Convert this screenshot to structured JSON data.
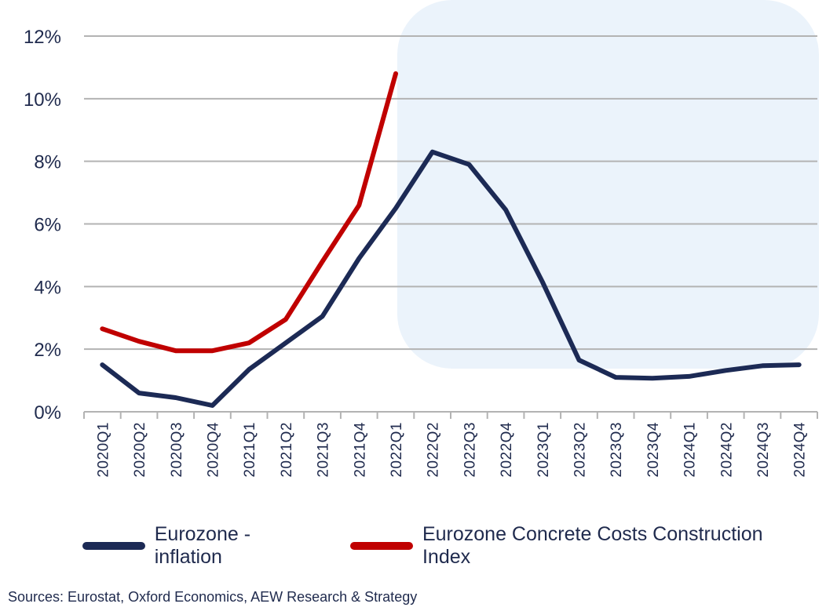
{
  "chart_data": {
    "type": "line",
    "categories": [
      "2020Q1",
      "2020Q2",
      "2020Q3",
      "2020Q4",
      "2021Q1",
      "2021Q2",
      "2021Q3",
      "2021Q4",
      "2022Q1",
      "2022Q2",
      "2022Q3",
      "2022Q4",
      "2023Q1",
      "2023Q2",
      "2023Q3",
      "2023Q4",
      "2024Q1",
      "2024Q2",
      "2024Q3",
      "2024Q4"
    ],
    "series": [
      {
        "name": "Eurozone - inflation",
        "color": "#1c2a55",
        "values": [
          1.5,
          0.6,
          0.45,
          0.2,
          1.35,
          2.2,
          3.05,
          4.9,
          6.5,
          8.3,
          7.9,
          6.45,
          4.15,
          1.65,
          1.1,
          1.07,
          1.13,
          1.32,
          1.47,
          1.5
        ]
      },
      {
        "name": "Eurozone Concrete Costs Construction Index",
        "color": "#c00000",
        "values": [
          2.65,
          2.25,
          1.95,
          1.95,
          2.2,
          2.95,
          4.8,
          6.6,
          10.8,
          null,
          null,
          null,
          null,
          null,
          null,
          null,
          null,
          null,
          null,
          null
        ]
      }
    ],
    "ylim": [
      0,
      12
    ],
    "yticks": [
      0,
      2,
      4,
      6,
      8,
      10,
      12
    ],
    "ytick_labels": [
      "0%",
      "2%",
      "4%",
      "6%",
      "8%",
      "10%",
      "12%"
    ],
    "grid": true,
    "highlight": {
      "from": "2022Q1",
      "to": "2024Q4",
      "color": "#ebf3fb"
    },
    "legend_position": "bottom",
    "source": "Sources: Eurostat, Oxford Economics, AEW Research & Strategy"
  }
}
